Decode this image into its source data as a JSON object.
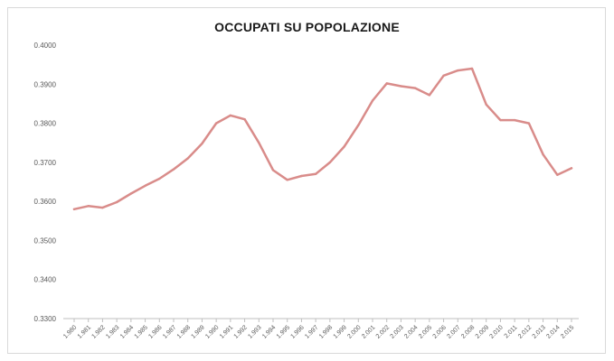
{
  "chart_data": {
    "type": "line",
    "title": "OCCUPATI SU POPOLAZIONE",
    "xlabel": "",
    "ylabel": "",
    "ylim": [
      0.33,
      0.4
    ],
    "y_ticks": [
      "0.3300",
      "0.3400",
      "0.3500",
      "0.3600",
      "0.3700",
      "0.3800",
      "0.3900",
      "0.4000"
    ],
    "grid": false,
    "legend": "none",
    "colors": {
      "line": "#d98c8a",
      "axis": "#bfbfbf",
      "text": "#595959"
    },
    "x": [
      "1.980",
      "1.981",
      "1.982",
      "1.983",
      "1.984",
      "1.985",
      "1.986",
      "1.987",
      "1.988",
      "1.989",
      "1.990",
      "1.991",
      "1.992",
      "1.993",
      "1.994",
      "1.995",
      "1.996",
      "1.997",
      "1.998",
      "1.999",
      "2.000",
      "2.001",
      "2.002",
      "2.003",
      "2.004",
      "2.005",
      "2.006",
      "2.007",
      "2.008",
      "2.009",
      "2.010",
      "2.011",
      "2.012",
      "2.013",
      "2.014",
      "2.015"
    ],
    "series": [
      {
        "values": [
          0.358,
          0.3588,
          0.3584,
          0.3598,
          0.362,
          0.364,
          0.3658,
          0.3682,
          0.371,
          0.3748,
          0.38,
          0.382,
          0.381,
          0.375,
          0.368,
          0.3655,
          0.3665,
          0.367,
          0.37,
          0.374,
          0.3795,
          0.3858,
          0.3902,
          0.3895,
          0.389,
          0.3872,
          0.3922,
          0.3935,
          0.394,
          0.3848,
          0.3808,
          0.3808,
          0.38,
          0.372,
          0.3668,
          0.3685
        ]
      }
    ]
  }
}
